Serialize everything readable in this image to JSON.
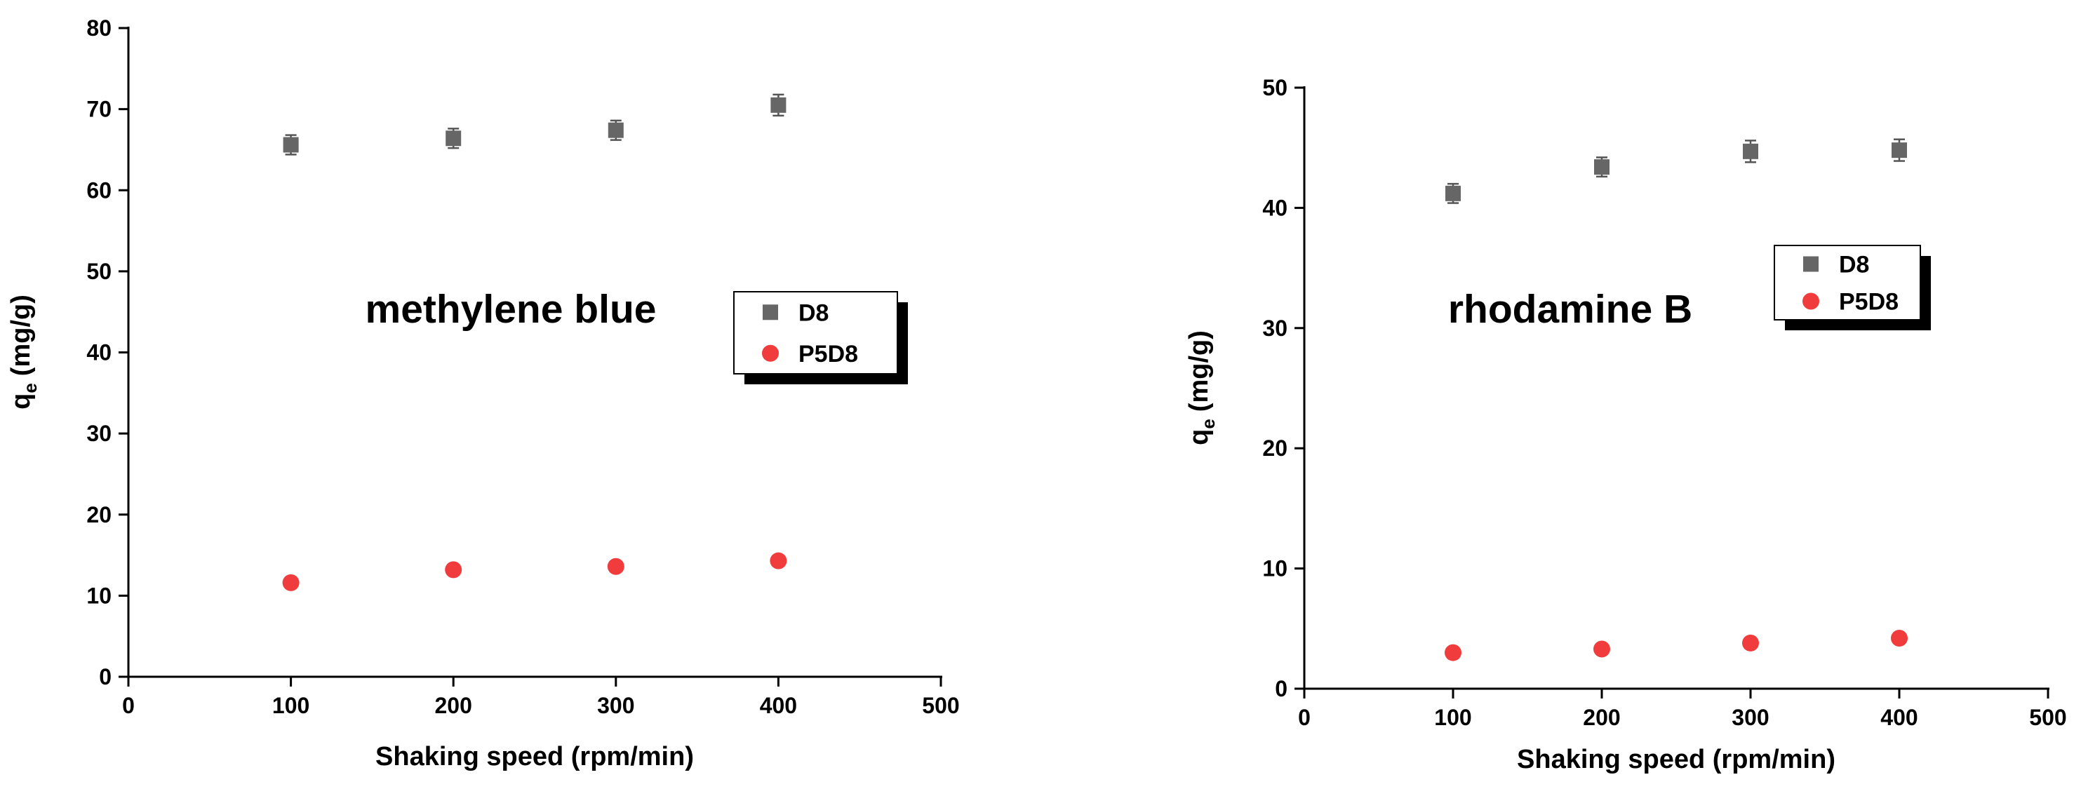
{
  "chart_data": [
    {
      "type": "scatter",
      "annotation": "methylene blue",
      "xlabel": "Shaking speed (rpm/min)",
      "ylabel": [
        "q",
        "e",
        "(mg/g)"
      ],
      "x": [
        100,
        200,
        300,
        400
      ],
      "xlim": [
        0,
        500
      ],
      "xticks": [
        0,
        100,
        200,
        300,
        400,
        500
      ],
      "ylim": [
        0,
        80
      ],
      "yticks": [
        0,
        10,
        20,
        30,
        40,
        50,
        60,
        70,
        80
      ],
      "series": [
        {
          "name": "D8",
          "color": "#666666",
          "marker": "square",
          "values": [
            65.6,
            66.4,
            67.4,
            70.5
          ],
          "errors": [
            1.2,
            1.2,
            1.2,
            1.3
          ]
        },
        {
          "name": "P5D8",
          "color": "#f03c3c",
          "marker": "circle",
          "values": [
            11.6,
            13.2,
            13.6,
            14.3
          ]
        }
      ]
    },
    {
      "type": "scatter",
      "annotation": "rhodamine B",
      "xlabel": "Shaking speed (rpm/min)",
      "ylabel": [
        "q",
        "e",
        "(mg/g)"
      ],
      "x": [
        100,
        200,
        300,
        400
      ],
      "xlim": [
        0,
        500
      ],
      "xticks": [
        0,
        100,
        200,
        300,
        400,
        500
      ],
      "ylim": [
        0,
        50
      ],
      "yticks": [
        0,
        10,
        20,
        30,
        40,
        50
      ],
      "series": [
        {
          "name": "D8",
          "color": "#666666",
          "marker": "square",
          "values": [
            41.2,
            43.4,
            44.7,
            44.8
          ],
          "errors": [
            0.8,
            0.8,
            0.9,
            0.9
          ]
        },
        {
          "name": "P5D8",
          "color": "#f03c3c",
          "marker": "circle",
          "values": [
            3.0,
            3.3,
            3.8,
            4.2
          ]
        }
      ]
    }
  ]
}
